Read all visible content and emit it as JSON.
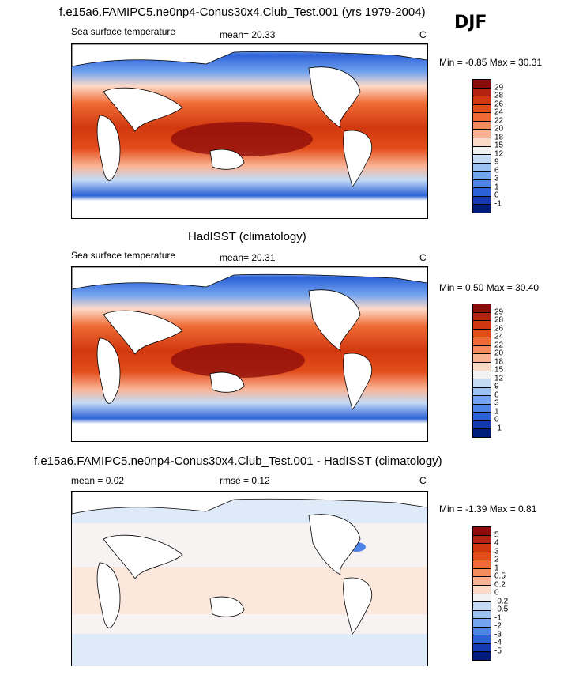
{
  "season": "DJF",
  "panels": [
    {
      "title": "f.e15a6.FAMIPC5.ne0np4-Conus30x4.Club_Test.001 (yrs 1979-2004)",
      "left_label": "Sea surface temperature",
      "center_label": "mean=  20.33",
      "units": "C",
      "minmax": "Min =  -0.85 Max =  30.31",
      "colorbar_labels": [
        "29",
        "28",
        "26",
        "24",
        "22",
        "20",
        "18",
        "15",
        "12",
        "9",
        "6",
        "3",
        "1",
        "0",
        "-1"
      ],
      "colorbar_colors": [
        "#8b0a0a",
        "#b3230f",
        "#d2380f",
        "#e34d1a",
        "#ef6a35",
        "#f58c5e",
        "#f9b394",
        "#fcdac8",
        "#f2f2f2",
        "#c5dbf5",
        "#9cc2f3",
        "#73a4ef",
        "#4d84e6",
        "#2c62d8",
        "#1439b0",
        "#001c7a"
      ]
    },
    {
      "title": "HadISST (climatology)",
      "left_label": "Sea surface temperature",
      "center_label": "mean=  20.31",
      "units": "C",
      "minmax": "Min =  0.50 Max =  30.40",
      "colorbar_labels": [
        "29",
        "28",
        "26",
        "24",
        "22",
        "20",
        "18",
        "15",
        "12",
        "9",
        "6",
        "3",
        "1",
        "0",
        "-1"
      ],
      "colorbar_colors": [
        "#8b0a0a",
        "#b3230f",
        "#d2380f",
        "#e34d1a",
        "#ef6a35",
        "#f58c5e",
        "#f9b394",
        "#fcdac8",
        "#f2f2f2",
        "#c5dbf5",
        "#9cc2f3",
        "#73a4ef",
        "#4d84e6",
        "#2c62d8",
        "#1439b0",
        "#001c7a"
      ]
    },
    {
      "title": "f.e15a6.FAMIPC5.ne0np4-Conus30x4.Club_Test.001 - HadISST (climatology)",
      "left_label": "mean =   0.02",
      "center_label": "rmse =   0.12",
      "units": "C",
      "minmax": "Min =  -1.39 Max =   0.81",
      "colorbar_labels": [
        "5",
        "4",
        "3",
        "2",
        "1",
        "0.5",
        "0.2",
        "0",
        "-0.2",
        "-0.5",
        "-1",
        "-2",
        "-3",
        "-4",
        "-5"
      ],
      "colorbar_colors": [
        "#8b0a0a",
        "#b3230f",
        "#d2380f",
        "#e34d1a",
        "#ef6a35",
        "#f58c5e",
        "#f9b394",
        "#fcdac8",
        "#f2f2f2",
        "#c5dbf5",
        "#9cc2f3",
        "#73a4ef",
        "#4d84e6",
        "#2c62d8",
        "#1439b0",
        "#001c7a"
      ]
    }
  ]
}
